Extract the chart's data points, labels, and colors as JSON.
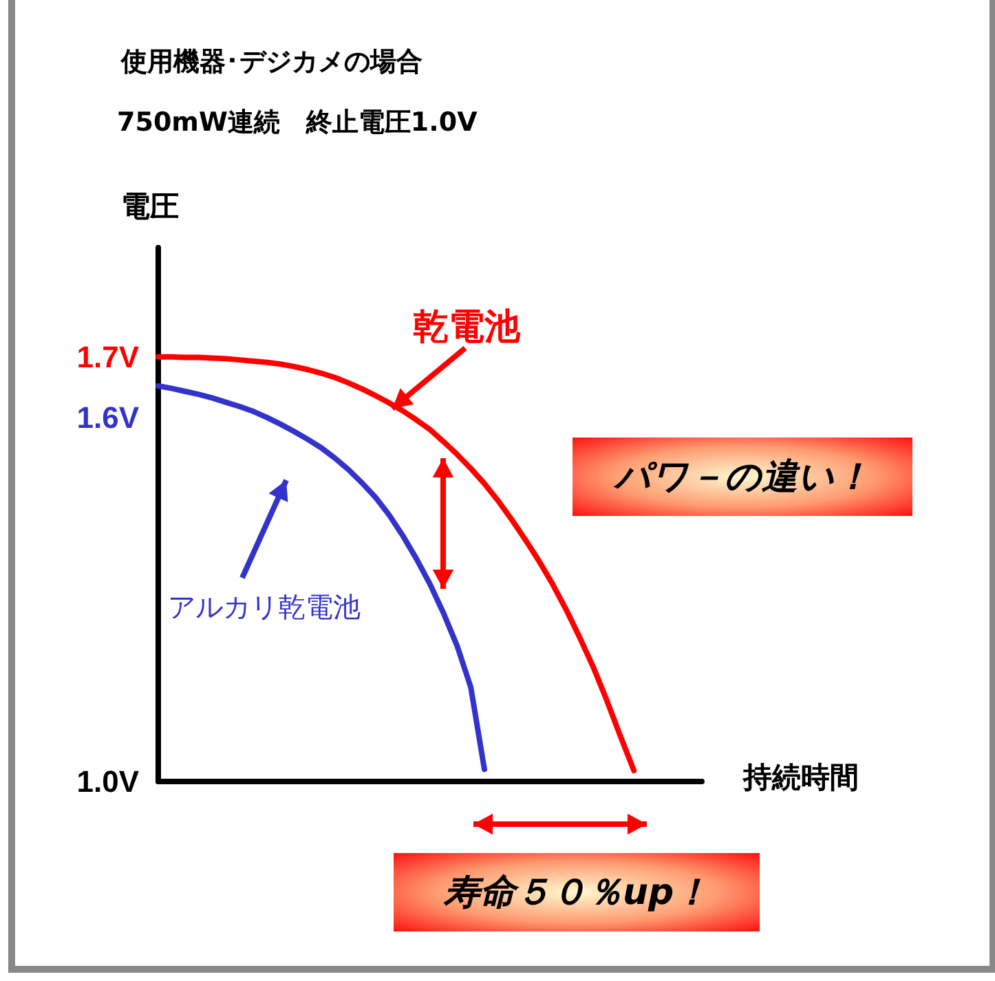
{
  "chart_data": {
    "type": "line",
    "title": "使用機器･デジカメの場合",
    "subtitle": "750mW連続　終止電圧1.0V",
    "xlabel": "持続時間",
    "ylabel": "電圧",
    "annotations": [
      "パワ－の違い！",
      "寿命５０％up！"
    ],
    "categories": [
      null,
      null,
      null,
      null,
      null,
      null,
      null,
      null,
      null,
      null,
      null,
      null,
      null,
      null,
      null,
      null,
      null,
      null,
      null,
      null,
      null,
      null,
      null,
      null,
      null,
      null,
      null,
      null,
      null,
      null,
      null,
      null,
      null,
      null,
      null,
      null,
      null,
      null,
      null,
      null,
      null
    ],
    "ylim": [
      1.0,
      1.88
    ],
    "yticks": [
      {
        "value": 1.0,
        "label": "1.0V"
      },
      {
        "value": 1.6,
        "label": "1.6V"
      },
      {
        "value": 1.7,
        "label": "1.7V"
      }
    ],
    "series": [
      {
        "name": "乾電池",
        "color": "#ff0000",
        "values": [
          1.7,
          1.7,
          1.699,
          1.699,
          1.698,
          1.697,
          1.695,
          1.693,
          1.691,
          1.688,
          1.684,
          1.679,
          1.673,
          1.666,
          1.657,
          1.647,
          1.636,
          1.624,
          1.611,
          1.596,
          1.58,
          1.56,
          1.539,
          1.516,
          1.491,
          1.463,
          1.432,
          1.399,
          1.364,
          1.326,
          1.284,
          1.238,
          1.189,
          1.134,
          1.075,
          1.018,
          null,
          null,
          null,
          null,
          null
        ]
      },
      {
        "name": "アルカリ乾電池",
        "color": "#3333cc",
        "values": [
          1.652,
          1.648,
          1.643,
          1.638,
          1.632,
          1.625,
          1.618,
          1.61,
          1.6,
          1.589,
          1.577,
          1.564,
          1.55,
          1.533,
          1.514,
          1.492,
          1.468,
          1.439,
          1.405,
          1.367,
          1.325,
          1.277,
          1.223,
          1.155,
          1.02,
          null,
          null,
          null,
          null,
          null,
          null,
          null,
          null,
          null,
          null,
          null,
          null,
          null,
          null,
          null,
          null
        ]
      }
    ],
    "legend": false,
    "grid": false,
    "marker": "none",
    "line_style": "solid"
  }
}
